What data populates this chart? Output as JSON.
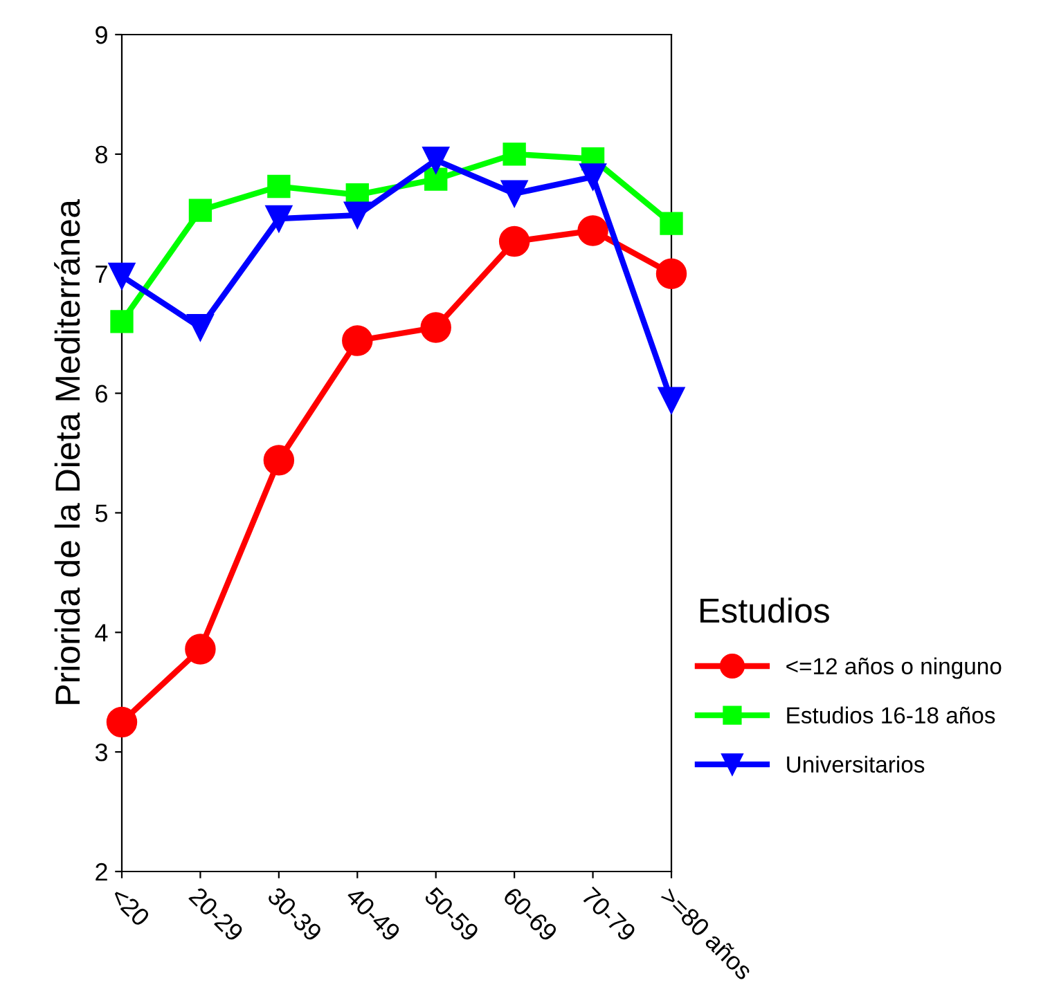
{
  "chart_data": {
    "type": "line",
    "ylabel": "Priorida de la Dieta Mediterránea",
    "legend_title": "Estudios",
    "categories": [
      "<20",
      "20-29",
      "30-39",
      "40-49",
      "50-59",
      "60-69",
      "70-79",
      ">=80 años"
    ],
    "series": [
      {
        "name": "<=12 años o ninguno",
        "color": "#ff0000",
        "marker": "circle",
        "values": [
          3.25,
          3.86,
          5.44,
          6.44,
          6.55,
          7.27,
          7.36,
          7.0
        ]
      },
      {
        "name": "Estudios 16-18 años",
        "color": "#00ff00",
        "marker": "square",
        "values": [
          6.6,
          7.53,
          7.73,
          7.66,
          7.79,
          8.0,
          7.96,
          7.42
        ]
      },
      {
        "name": "Universitarios",
        "color": "#0000ff",
        "marker": "triangle",
        "values": [
          6.98,
          6.55,
          7.46,
          7.49,
          7.95,
          7.67,
          7.81,
          5.94
        ]
      }
    ],
    "ylim": [
      2,
      9
    ],
    "yticks": [
      2,
      3,
      4,
      5,
      6,
      7,
      8,
      9
    ],
    "grid": false,
    "legend": "right",
    "line_style": "solid"
  }
}
